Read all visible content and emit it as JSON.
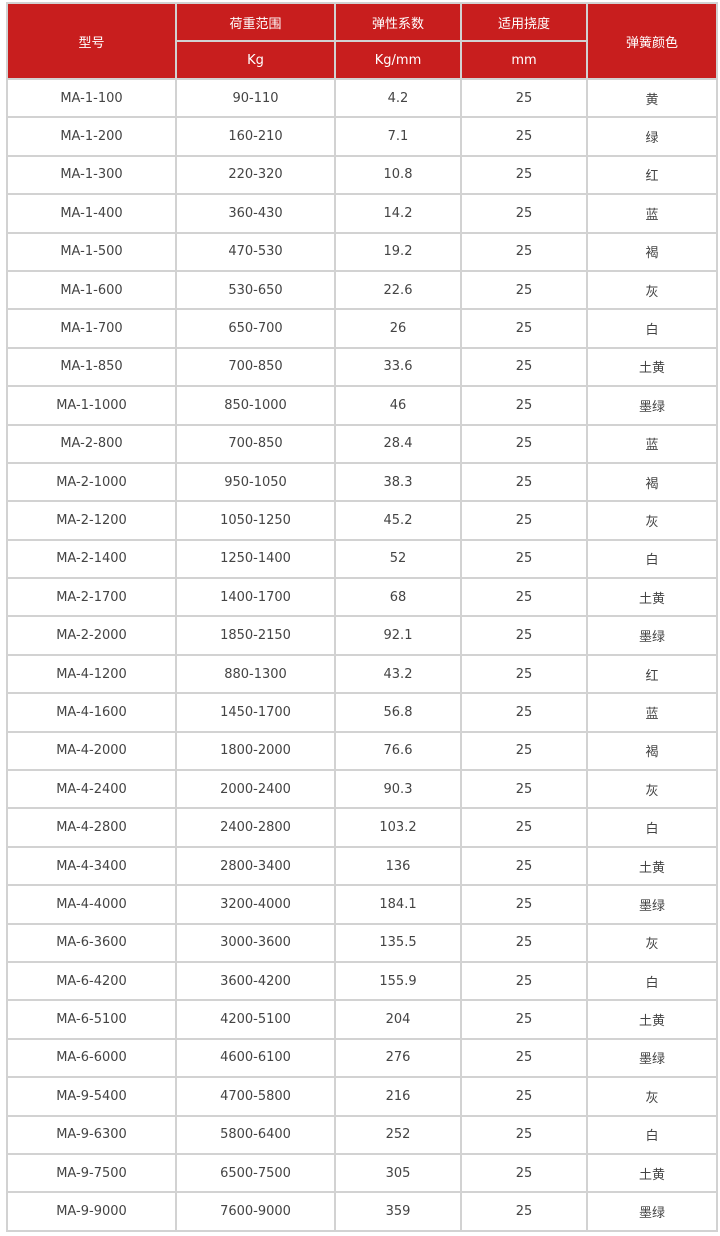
{
  "header": {
    "model": "型号",
    "load_range": "荷重范围",
    "load_unit": "Kg",
    "stiffness": "弹性系数",
    "stiffness_unit": "Kg/mm",
    "deflection": "适用挠度",
    "deflection_unit": "mm",
    "spring_color": "弹簧颜色"
  },
  "colors": {
    "header_bg": "#c81e1e",
    "border": "#d2d2d2"
  },
  "rows": [
    [
      "MA-1-100",
      "90-110",
      "4.2",
      "25",
      "黄"
    ],
    [
      "MA-1-200",
      "160-210",
      "7.1",
      "25",
      "绿"
    ],
    [
      "MA-1-300",
      "220-320",
      "10.8",
      "25",
      "红"
    ],
    [
      "MA-1-400",
      "360-430",
      "14.2",
      "25",
      "蓝"
    ],
    [
      "MA-1-500",
      "470-530",
      "19.2",
      "25",
      "褐"
    ],
    [
      "MA-1-600",
      "530-650",
      "22.6",
      "25",
      "灰"
    ],
    [
      "MA-1-700",
      "650-700",
      "26",
      "25",
      "白"
    ],
    [
      "MA-1-850",
      "700-850",
      "33.6",
      "25",
      "土黄"
    ],
    [
      "MA-1-1000",
      "850-1000",
      "46",
      "25",
      "墨绿"
    ],
    [
      "MA-2-800",
      "700-850",
      "28.4",
      "25",
      "蓝"
    ],
    [
      "MA-2-1000",
      "950-1050",
      "38.3",
      "25",
      "褐"
    ],
    [
      "MA-2-1200",
      "1050-1250",
      "45.2",
      "25",
      "灰"
    ],
    [
      "MA-2-1400",
      "1250-1400",
      "52",
      "25",
      "白"
    ],
    [
      "MA-2-1700",
      "1400-1700",
      "68",
      "25",
      "土黄"
    ],
    [
      "MA-2-2000",
      "1850-2150",
      "92.1",
      "25",
      "墨绿"
    ],
    [
      "MA-4-1200",
      "880-1300",
      "43.2",
      "25",
      "红"
    ],
    [
      "MA-4-1600",
      "1450-1700",
      "56.8",
      "25",
      "蓝"
    ],
    [
      "MA-4-2000",
      "1800-2000",
      "76.6",
      "25",
      "褐"
    ],
    [
      "MA-4-2400",
      "2000-2400",
      "90.3",
      "25",
      "灰"
    ],
    [
      "MA-4-2800",
      "2400-2800",
      "103.2",
      "25",
      "白"
    ],
    [
      "MA-4-3400",
      "2800-3400",
      "136",
      "25",
      "土黄"
    ],
    [
      "MA-4-4000",
      "3200-4000",
      "184.1",
      "25",
      "墨绿"
    ],
    [
      "MA-6-3600",
      "3000-3600",
      "135.5",
      "25",
      "灰"
    ],
    [
      "MA-6-4200",
      "3600-4200",
      "155.9",
      "25",
      "白"
    ],
    [
      "MA-6-5100",
      "4200-5100",
      "204",
      "25",
      "土黄"
    ],
    [
      "MA-6-6000",
      "4600-6100",
      "276",
      "25",
      "墨绿"
    ],
    [
      "MA-9-5400",
      "4700-5800",
      "216",
      "25",
      "灰"
    ],
    [
      "MA-9-6300",
      "5800-6400",
      "252",
      "25",
      "白"
    ],
    [
      "MA-9-7500",
      "6500-7500",
      "305",
      "25",
      "土黄"
    ],
    [
      "MA-9-9000",
      "7600-9000",
      "359",
      "25",
      "墨绿"
    ]
  ]
}
